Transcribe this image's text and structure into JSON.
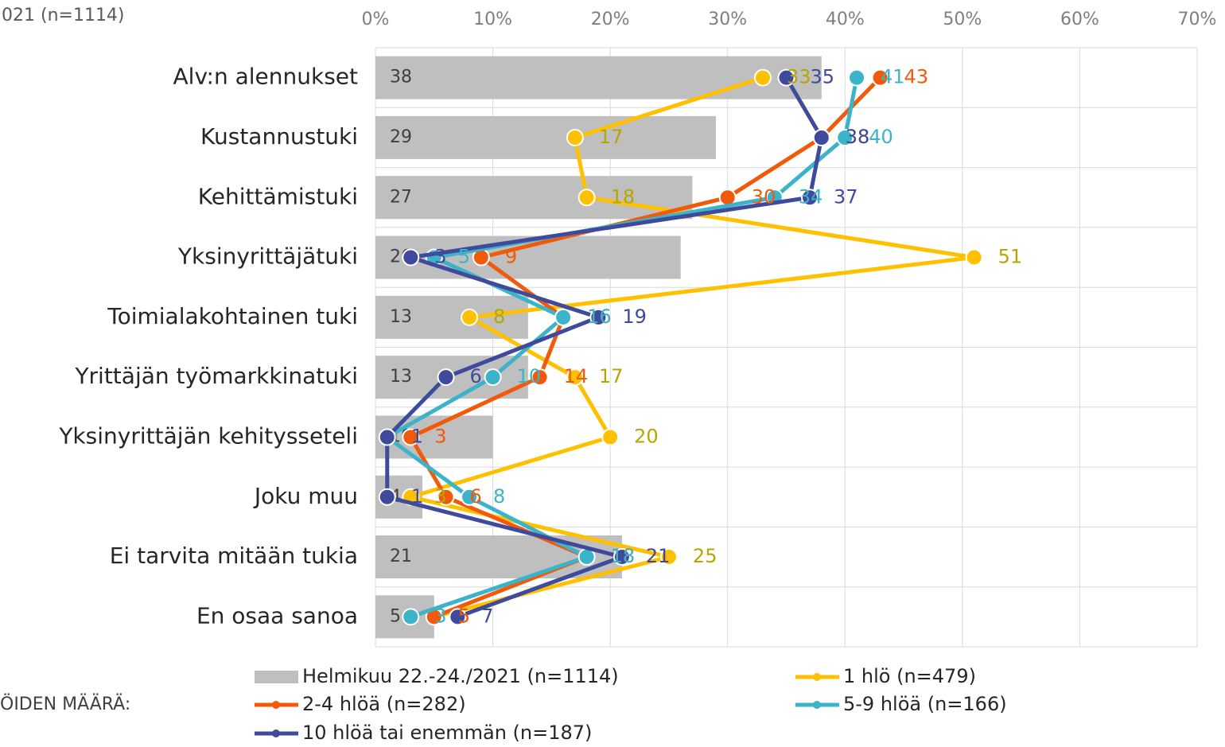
{
  "chart_data": {
    "type": "bar-line",
    "annotations": [
      "021 (n=1114)",
      "ÖIDEN MÄÄRÄ:"
    ],
    "categories": [
      "Alv:n alennukset",
      "Kustannustuki",
      "Kehittämistuki",
      "Yksinyrittäjätuki",
      "Toimialakohtainen tuki",
      "Yrittäjän työmarkkinatuki",
      "Yksinyrittäjän kehitysseteli",
      "Joku muu",
      "Ei tarvita mitään tukia",
      "En osaa sanoa"
    ],
    "series": [
      {
        "name": "Helmikuu 22.-24./2021 (n=1114)",
        "color": "#bfbfbf",
        "kind": "bar",
        "values": [
          38,
          29,
          27,
          26,
          13,
          13,
          10,
          4,
          21,
          5
        ]
      },
      {
        "name": "1 hlö (n=479)",
        "color": "#ffc000",
        "kind": "line",
        "values": [
          33,
          17,
          18,
          51,
          8,
          17,
          20,
          3,
          25,
          5
        ]
      },
      {
        "name": "2-4 hlöä (n=282)",
        "color": "#f05a0a",
        "kind": "line",
        "values": [
          43,
          38,
          30,
          9,
          16,
          14,
          3,
          6,
          18,
          5
        ]
      },
      {
        "name": "5-9 hlöä (n=166)",
        "color": "#3bb3c8",
        "kind": "line",
        "values": [
          41,
          40,
          34,
          5,
          16,
          10,
          1,
          8,
          18,
          3
        ]
      },
      {
        "name": "10 hlöä tai enemmän (n=187)",
        "color": "#3f4a9c",
        "kind": "line",
        "values": [
          35,
          38,
          37,
          3,
          19,
          6,
          1,
          1,
          21,
          7
        ]
      }
    ],
    "xlim": [
      0,
      70
    ],
    "xticks": [
      {
        "value": 0,
        "label": "0%"
      },
      {
        "value": 10,
        "label": "10%"
      },
      {
        "value": 20,
        "label": "20%"
      },
      {
        "value": 30,
        "label": "30%"
      },
      {
        "value": 40,
        "label": "40%"
      },
      {
        "value": 50,
        "label": "50%"
      },
      {
        "value": 60,
        "label": "60%"
      },
      {
        "value": 70,
        "label": "70%"
      }
    ],
    "grid": true
  }
}
